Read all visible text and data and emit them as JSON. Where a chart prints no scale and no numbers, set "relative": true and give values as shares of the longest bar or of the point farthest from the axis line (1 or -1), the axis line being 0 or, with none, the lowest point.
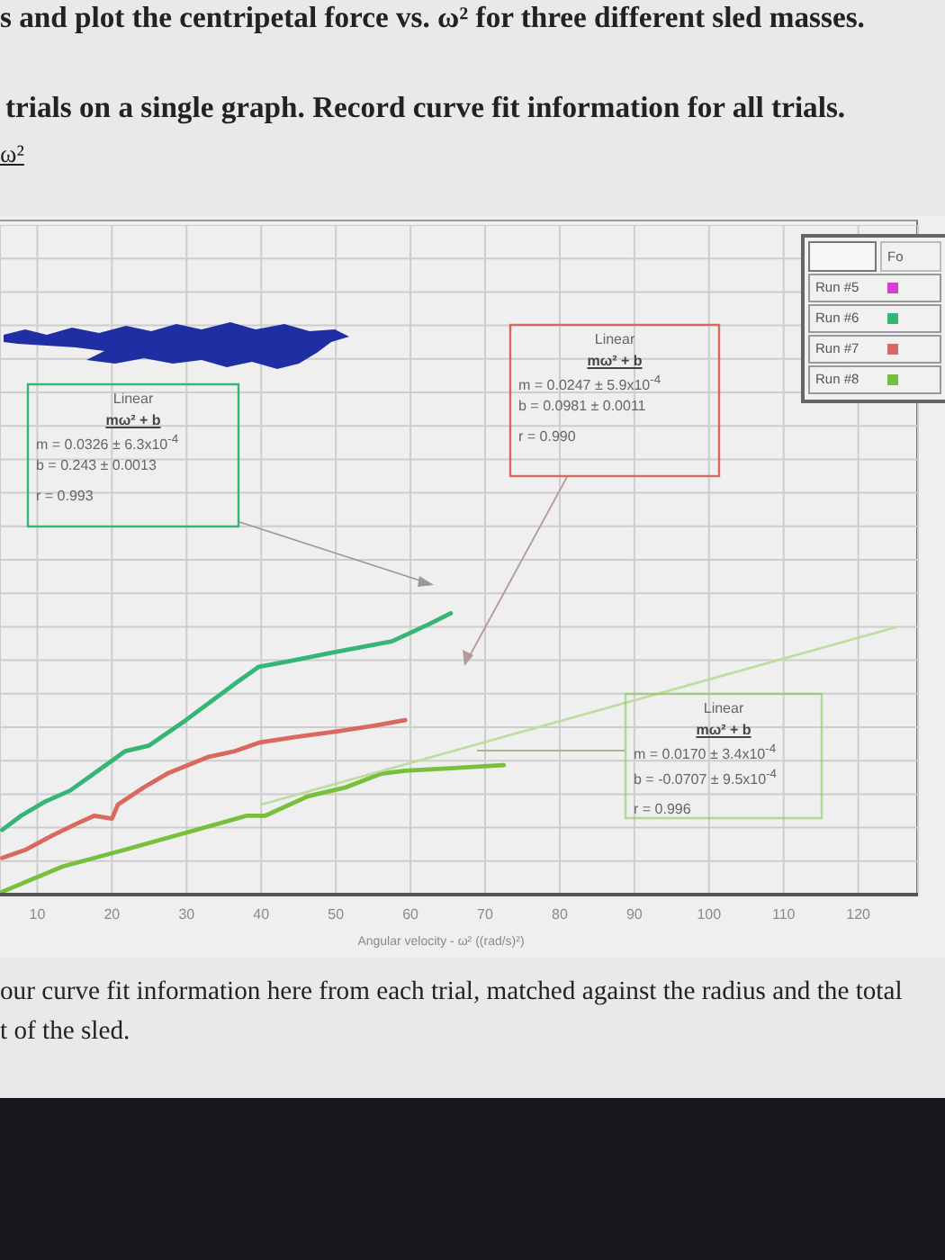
{
  "chart_data": {
    "type": "line",
    "xlabel": "Angular velocity - ω² ((rad/s)²)",
    "legend_title": "Fo",
    "relative": true,
    "xlim": [
      5,
      128
    ],
    "xticks": [
      10,
      20,
      30,
      40,
      50,
      60,
      70,
      80,
      90,
      100,
      110,
      120
    ],
    "grid": true,
    "legend": "top right",
    "tick_labels": "x",
    "series": [
      {
        "name": "Run #5",
        "color": "#d040c8"
      },
      {
        "name": "Run #6",
        "color": "#35b576",
        "x": [
          5.3,
          7.8,
          11,
          14.4,
          17.6,
          21.8,
          25,
          29.9,
          36.5,
          39.7,
          43.8,
          49.5,
          57.5,
          62.4,
          65.4
        ],
        "values": [
          0.23,
          0.28,
          0.33,
          0.37,
          0.43,
          0.51,
          0.53,
          0.62,
          0.75,
          0.81,
          0.83,
          0.86,
          0.9,
          0.96,
          1
        ]
      },
      {
        "name": "Run #7",
        "color": "#d9685f",
        "x": [
          5.3,
          8.5,
          12,
          15.1,
          17.6,
          20,
          20.8,
          24.2,
          27.4,
          33,
          36.5,
          39.7,
          44.6,
          50.2,
          55.1,
          59.3
        ],
        "values": [
          0.13,
          0.16,
          0.21,
          0.25,
          0.28,
          0.27,
          0.32,
          0.38,
          0.43,
          0.49,
          0.51,
          0.54,
          0.56,
          0.58,
          0.6,
          0.62
        ]
      },
      {
        "name": "Run #8",
        "color": "#78c03c",
        "x": [
          5.3,
          13.4,
          21.8,
          29.9,
          38,
          40.5,
          46.3,
          51.2,
          56.1,
          59.3,
          65.9,
          72.5
        ],
        "values": [
          0.01,
          0.1,
          0.16,
          0.22,
          0.28,
          0.28,
          0.35,
          0.38,
          0.43,
          0.44,
          0.45,
          0.46
        ]
      },
      {
        "type": "line",
        "color": "#bcdca0",
        "x": [
          40,
          125
        ],
        "values": [
          0.32,
          0.95
        ]
      }
    ],
    "annotations": [
      "s and plot the centripetal force vs. ω² for three different sled masses.",
      "trials on a single graph. Record curve fit information for all trials.",
      "ω²",
      "Linear\nmω² + b\nm = 0.0326 ± 6.3x10$^{-4}$\nb = 0.243  ± 0.0013\nr = 0.993",
      "Linear\nmω² + b\nm = 0.0247 ± 5.9x10$^{-4}$\nb = 0.0981 ± 0.0011\nr = 0.990",
      "Linear\nmω² + b\nm = 0.0170 ± 3.4x10$^{-4}$\nb = -0.0707 ± 9.5x10$^{-4}$\nr = 0.996",
      "our curve fit information here from each trial, matched against the radius and the total",
      "t of the sled."
    ]
  }
}
